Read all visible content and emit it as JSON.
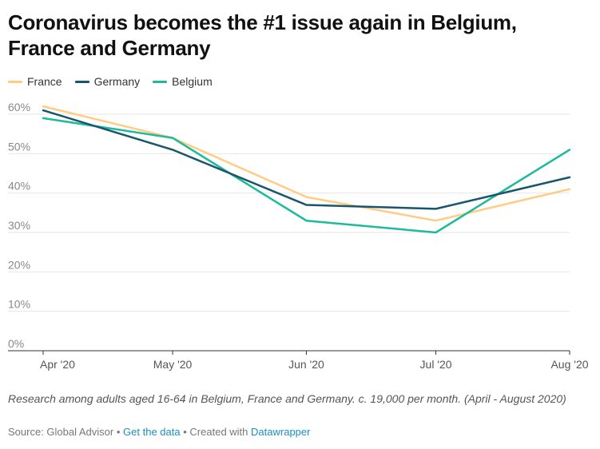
{
  "header": {
    "title": "Coronavirus becomes the #1 issue again in Belgium, France and Germany"
  },
  "legend": [
    {
      "name": "France",
      "color": "#fecc83"
    },
    {
      "name": "Germany",
      "color": "#19566b"
    },
    {
      "name": "Belgium",
      "color": "#1dba9b"
    }
  ],
  "chart_data": {
    "type": "line",
    "title": "Coronavirus becomes the #1 issue again in Belgium, France and Germany",
    "xlabel": "",
    "ylabel": "",
    "x": [
      "Apr '20",
      "May '20",
      "Jun '20",
      "Jul '20",
      "Aug '20"
    ],
    "x_dates": [
      "2020-04-01",
      "2020-05-01",
      "2020-06-01",
      "2020-07-01",
      "2020-08-01"
    ],
    "ylim": [
      0,
      60
    ],
    "yticks": [
      "0%",
      "10%",
      "20%",
      "30%",
      "40%",
      "50%",
      "60%"
    ],
    "grid": true,
    "legend_position": "top-left",
    "series": [
      {
        "name": "France",
        "color": "#fecc83",
        "points": [
          [
            "2020-04-01",
            62
          ],
          [
            "2020-05-01",
            54
          ],
          [
            "2020-06-01",
            39
          ],
          [
            "2020-07-01",
            33
          ],
          [
            "2020-08-01",
            41
          ]
        ]
      },
      {
        "name": "Germany",
        "color": "#19566b",
        "points": [
          [
            "2020-04-01",
            61
          ],
          [
            "2020-05-01",
            51
          ],
          [
            "2020-06-01",
            37
          ],
          [
            "2020-07-01",
            36
          ],
          [
            "2020-08-01",
            44
          ]
        ]
      },
      {
        "name": "Belgium",
        "color": "#1dba9b",
        "points": [
          [
            "2020-04-01",
            59
          ],
          [
            "2020-05-01",
            54
          ],
          [
            "2020-06-01",
            33
          ],
          [
            "2020-07-01",
            30
          ],
          [
            "2020-08-01",
            51
          ]
        ]
      }
    ]
  },
  "notes": "Research among adults aged 16-64 in Belgium, France and Germany. c. 19,000 per month. (April - August 2020)",
  "footer": {
    "source_text": "Source: Global Advisor",
    "separator": "•",
    "get_data_link": "Get the data",
    "created_with_text": "Created with",
    "datawrapper_link": "Datawrapper"
  }
}
